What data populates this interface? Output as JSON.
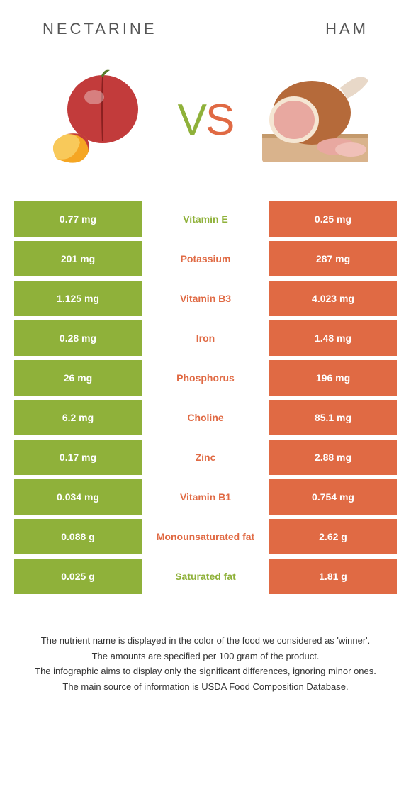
{
  "header": {
    "left": "Nectarine",
    "right": "Ham"
  },
  "vs": {
    "v": "V",
    "s": "S"
  },
  "colors": {
    "green": "#8fb13a",
    "orange": "#e06a44",
    "white": "#ffffff"
  },
  "rows": [
    {
      "left": "0.77 mg",
      "mid": "Vitamin E",
      "right": "0.25 mg",
      "mid_color": "#8fb13a"
    },
    {
      "left": "201 mg",
      "mid": "Potassium",
      "right": "287 mg",
      "mid_color": "#e06a44"
    },
    {
      "left": "1.125 mg",
      "mid": "Vitamin B3",
      "right": "4.023 mg",
      "mid_color": "#e06a44"
    },
    {
      "left": "0.28 mg",
      "mid": "Iron",
      "right": "1.48 mg",
      "mid_color": "#e06a44"
    },
    {
      "left": "26 mg",
      "mid": "Phosphorus",
      "right": "196 mg",
      "mid_color": "#e06a44"
    },
    {
      "left": "6.2 mg",
      "mid": "Choline",
      "right": "85.1 mg",
      "mid_color": "#e06a44"
    },
    {
      "left": "0.17 mg",
      "mid": "Zinc",
      "right": "2.88 mg",
      "mid_color": "#e06a44"
    },
    {
      "left": "0.034 mg",
      "mid": "Vitamin B1",
      "right": "0.754 mg",
      "mid_color": "#e06a44"
    },
    {
      "left": "0.088 g",
      "mid": "Monounsaturated fat",
      "right": "2.62 g",
      "mid_color": "#e06a44"
    },
    {
      "left": "0.025 g",
      "mid": "Saturated fat",
      "right": "1.81 g",
      "mid_color": "#8fb13a"
    }
  ],
  "footer": {
    "l1": "The nutrient name is displayed in the color of the food we considered as 'winner'.",
    "l2": "The amounts are specified per 100 gram of the product.",
    "l3": "The infographic aims to display only the significant differences, ignoring minor ones.",
    "l4": "The main source of information is USDA Food Composition Database."
  }
}
